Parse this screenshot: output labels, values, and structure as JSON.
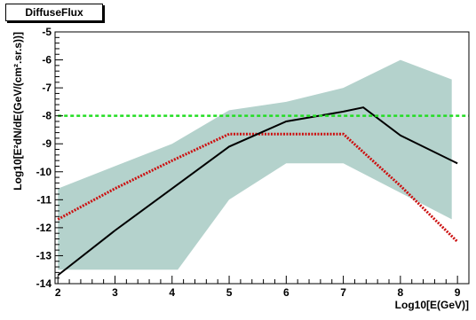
{
  "chart_data": {
    "type": "line",
    "title": "DiffuseFlux",
    "xlabel": "Log10[E(GeV)]",
    "ylabel": "Log10[E²dN/dE(GeV/(cm².sr.s))]",
    "xlim": [
      1.95,
      9.2
    ],
    "ylim": [
      -14,
      -5
    ],
    "xticks": [
      "2",
      "3",
      "4",
      "5",
      "6",
      "7",
      "8",
      "9"
    ],
    "yticks": [
      "-5",
      "-6",
      "-7",
      "-8",
      "-9",
      "-10",
      "-11",
      "-12",
      "-13",
      "-14"
    ],
    "grid": false,
    "colors": {
      "band": "#b4d2cc",
      "black_curve": "#000000",
      "red_curve": "#cc1111",
      "green_line": "#22dd22"
    },
    "band": {
      "upper": [
        [
          2.0,
          -10.6
        ],
        [
          4.0,
          -9.0
        ],
        [
          5.0,
          -7.8
        ],
        [
          6.0,
          -7.5
        ],
        [
          7.0,
          -7.0
        ],
        [
          8.0,
          -6.0
        ],
        [
          8.9,
          -6.7
        ]
      ],
      "lower": [
        [
          2.0,
          -13.5
        ],
        [
          4.1,
          -13.5
        ],
        [
          5.0,
          -11.0
        ],
        [
          6.0,
          -9.7
        ],
        [
          7.0,
          -9.7
        ],
        [
          8.9,
          -11.7
        ]
      ]
    },
    "series": [
      {
        "values": [
          [
            2.0,
            -13.7
          ],
          [
            3.0,
            -12.1
          ],
          [
            4.0,
            -10.6
          ],
          [
            5.0,
            -9.1
          ],
          [
            6.0,
            -8.2
          ],
          [
            7.0,
            -7.85
          ],
          [
            7.35,
            -7.7
          ],
          [
            8.0,
            -8.7
          ],
          [
            9.0,
            -9.7
          ]
        ]
      },
      {
        "values": [
          [
            2.0,
            -11.7
          ],
          [
            3.0,
            -10.6
          ],
          [
            4.0,
            -9.6
          ],
          [
            5.0,
            -8.65
          ],
          [
            6.0,
            -8.65
          ],
          [
            7.0,
            -8.65
          ],
          [
            8.0,
            -10.5
          ],
          [
            9.0,
            -12.5
          ]
        ]
      },
      {
        "values": [
          [
            2.0,
            -8.0
          ],
          [
            9.2,
            -8.0
          ]
        ]
      }
    ]
  }
}
